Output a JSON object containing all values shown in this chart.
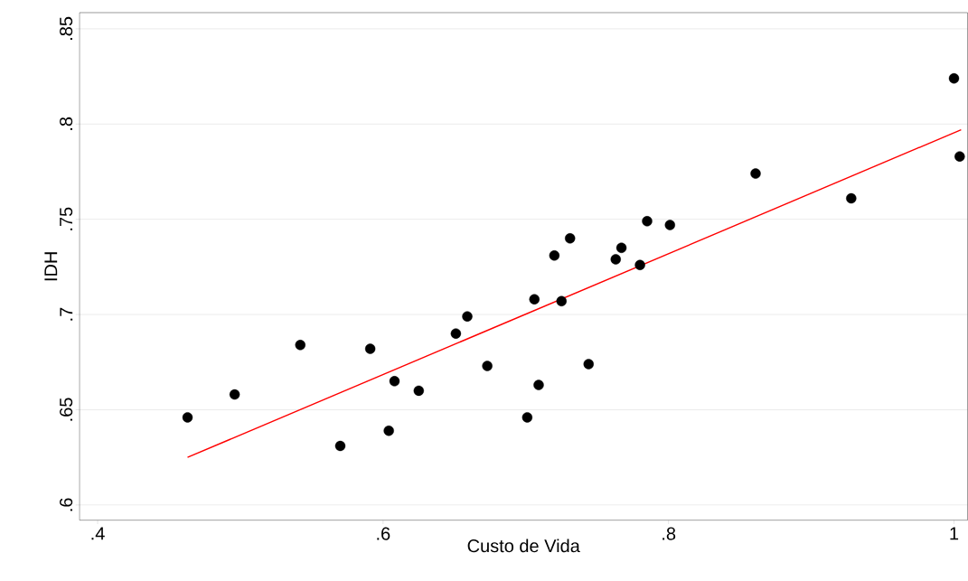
{
  "chart_data": {
    "type": "scatter",
    "xlabel": "Custo de Vida",
    "ylabel": "IDH",
    "xlim": [
      0.3873,
      1.0095
    ],
    "ylim": [
      0.592,
      0.8585
    ],
    "xticks": [
      {
        "value": 0.4,
        "label": ".4"
      },
      {
        "value": 0.6,
        "label": ".6"
      },
      {
        "value": 0.8,
        "label": ".8"
      },
      1
    ],
    "yticks": [
      {
        "value": 0.6,
        "label": ".6"
      },
      {
        "value": 0.65,
        "label": ".65"
      },
      {
        "value": 0.7,
        "label": ".7"
      },
      {
        "value": 0.75,
        "label": ".75"
      },
      {
        "value": 0.8,
        "label": ".8"
      },
      {
        "value": 0.85,
        "label": ".85"
      }
    ],
    "grid": "y",
    "series": [
      {
        "marker": "circle",
        "color": "#000000",
        "x": [
          0.463,
          0.496,
          0.542,
          0.57,
          0.591,
          0.604,
          0.608,
          0.625,
          0.651,
          0.659,
          0.673,
          0.701,
          0.706,
          0.709,
          0.72,
          0.725,
          0.731,
          0.744,
          0.763,
          0.767,
          0.78,
          0.785,
          0.801,
          0.861,
          0.928,
          1.0,
          1.004
        ],
        "values": [
          0.646,
          0.658,
          0.684,
          0.631,
          0.682,
          0.639,
          0.665,
          0.66,
          0.69,
          0.699,
          0.673,
          0.646,
          0.708,
          0.663,
          0.731,
          0.707,
          0.74,
          0.674,
          0.729,
          0.735,
          0.726,
          0.749,
          0.747,
          0.774,
          0.761,
          0.824,
          0.783
        ]
      },
      {
        "type": "line",
        "marker": "none",
        "color": "#ff0000",
        "x": [
          0.463,
          1.005
        ],
        "values": [
          0.625,
          0.797
        ]
      }
    ]
  }
}
